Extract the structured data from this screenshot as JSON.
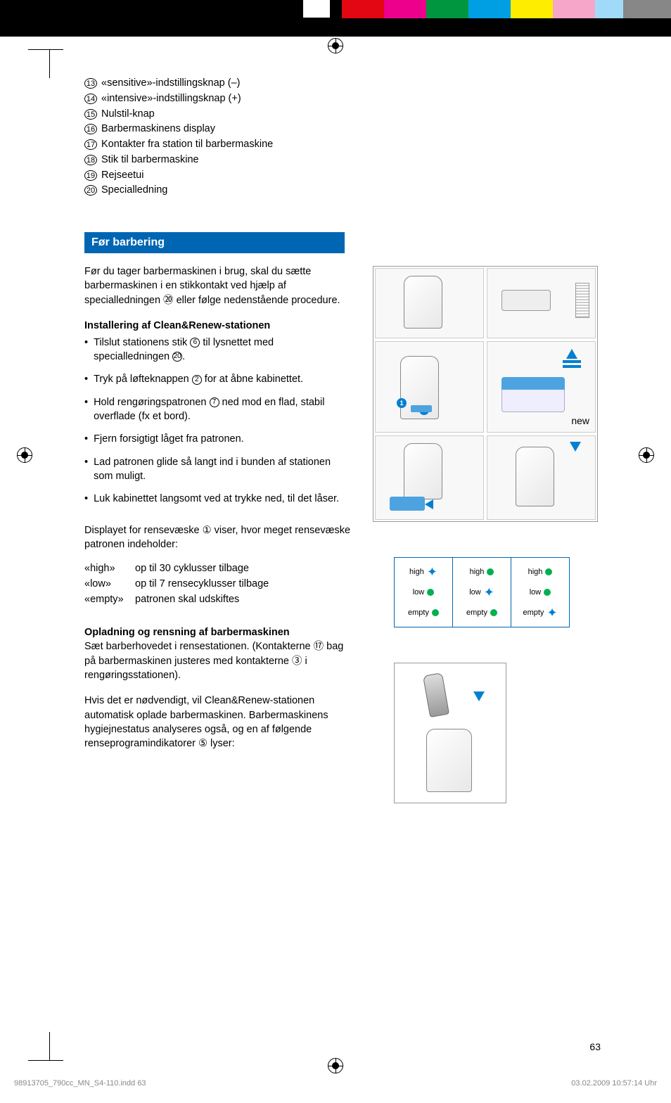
{
  "top_bar": {
    "row1_colors": [
      "#000000",
      "#000000",
      "#000000",
      "#000000",
      "#000000",
      "#ffffff",
      "#000000",
      "#e30613",
      "#ec008c",
      "#009640",
      "#009fe3",
      "#ffed00",
      "#f6a6c9",
      "#a1daf8",
      "#878787"
    ],
    "row1_widths": [
      270,
      40,
      40,
      40,
      40,
      40,
      16,
      60,
      60,
      60,
      60,
      60,
      60,
      40,
      68
    ],
    "row2_colors": [
      "#000000"
    ],
    "row2_widths": [
      954
    ]
  },
  "numbered_list": [
    {
      "num": "13",
      "label": "«sensitive»-indstillingsknap (–)"
    },
    {
      "num": "14",
      "label": "«intensive»-indstillingsknap (+)"
    },
    {
      "num": "15",
      "label": "Nulstil-knap"
    },
    {
      "num": "16",
      "label": "Barbermaskinens display"
    },
    {
      "num": "17",
      "label": "Kontakter fra station til barbermaskine"
    },
    {
      "num": "18",
      "label": "Stik til barbermaskine"
    },
    {
      "num": "19",
      "label": "Rejseetui"
    },
    {
      "num": "20",
      "label": "Specialledning"
    }
  ],
  "section_header": "Før barbering",
  "intro_text": "Før du tager barbermaskinen i brug, skal du sætte barbermaskinen i en stikkontakt ved hjælp af specialledningen ⑳ eller følge nedenstående procedure.",
  "sub1_heading": "Installering af Clean&Renew-stationen",
  "bullets1": [
    {
      "text_pre": "Tilslut stationens stik ",
      "ref": "6",
      "text_post": " til lysnettet med specialledningen ",
      "ref2": "20",
      "text_end": "."
    },
    {
      "text_pre": "Tryk på løfteknappen ",
      "ref": "2",
      "text_post": " for at åbne kabinettet."
    },
    {
      "text_pre": "Hold rengøringspatronen ",
      "ref": "7",
      "text_post": " ned mod en flad, stabil overflade (fx et bord)."
    },
    {
      "text_pre": "Fjern forsigtigt låget fra patronen."
    },
    {
      "text_pre": "Lad patronen glide så langt ind i bunden af stationen som muligt."
    },
    {
      "text_pre": "Luk kabinettet langsomt ved at trykke ned, til det låser."
    }
  ],
  "display_text": "Displayet for rensevæske ① viser, hvor meget rensevæske patronen indeholder:",
  "defs": [
    {
      "term": "«high»",
      "def": "op til 30 cyklusser tilbage"
    },
    {
      "term": "«low»",
      "def": "op til 7 rensecyklusser tilbage"
    },
    {
      "term": "«empty»",
      "def": "patronen skal udskiftes"
    }
  ],
  "sub2_heading": "Opladning og rensning af barbermaskinen",
  "sub2_text": "Sæt barberhovedet i rensestationen. (Kontakterne ⑰ bag på barbermaskinen justeres med kontakterne ③ i rengøringsstationen).",
  "sub2_text2": "Hvis det er nødvendigt, vil Clean&Renew-stationen automatisk oplade barbermaskinen. Barbermaskinens hygiejnestatus analyseres også, og en af følgende renseprogramindikatorer ⑤ lyser:",
  "new_label": "new",
  "level_indicators": {
    "col1": [
      {
        "label": "high",
        "active": true
      },
      {
        "label": "low",
        "active": false
      },
      {
        "label": "empty",
        "active": false
      }
    ],
    "col2": [
      {
        "label": "high",
        "active": false
      },
      {
        "label": "low",
        "active": true
      },
      {
        "label": "empty",
        "active": false
      }
    ],
    "col3": [
      {
        "label": "high",
        "active": false
      },
      {
        "label": "low",
        "active": false
      },
      {
        "label": "empty",
        "active": true
      }
    ]
  },
  "colors": {
    "active_led": "#00b050",
    "active_star": "#0080d0",
    "inactive_led": "#00b050",
    "blue_accent": "#4da3e0",
    "header_blue": "#0066b3"
  },
  "page_number": "63",
  "footer_left": "98913705_790cc_MN_S4-110.indd   63",
  "footer_right": "03.02.2009   10:57:14 Uhr"
}
